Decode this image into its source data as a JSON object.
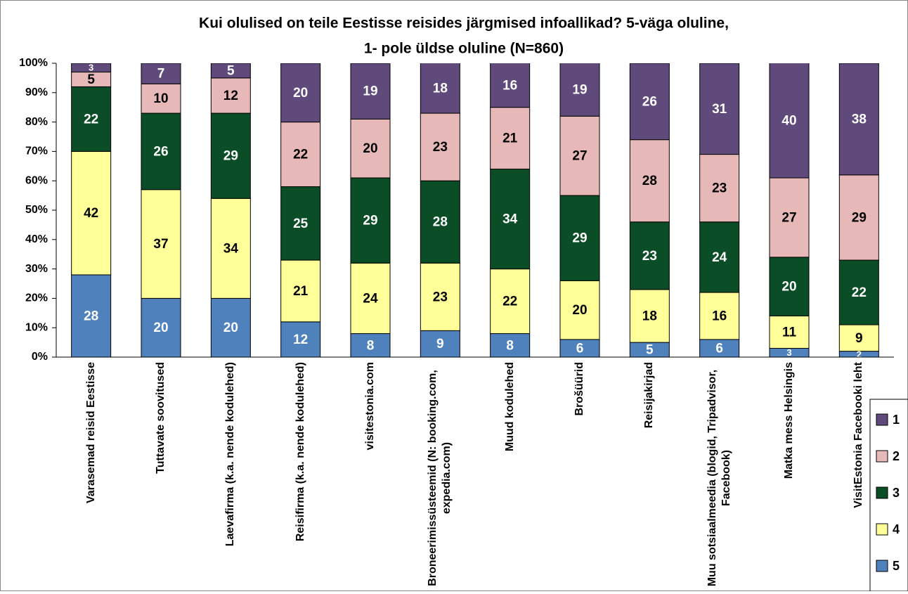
{
  "chart_data": {
    "type": "stacked_bar",
    "title": [
      "Kui olulised on teile Eestisse reisides järgmised infoallikad? 5-väga oluline,",
      "1- pole üldse oluline (N=860)"
    ],
    "categories": [
      "Varasemad reisid Eestisse",
      "Tuttavate soovitused",
      "Laevafirma (k.a. nende kodulehed)",
      "Reisifirma (k.a. nende kodulehed)",
      "visitestonia.com",
      "Broneerimissüsteemid (N: booking.com, expedia.com)",
      "Muud kodulehed",
      "Brošüürid",
      "Reisijakirjad",
      "Muu sotsiaalmeedia (blogid, Tripadvisor, Facebook)",
      "Matka mess Helsingis",
      "VisitEstonia Facebooki leht"
    ],
    "series": [
      {
        "name": "5",
        "color": "#4f81bd",
        "values": [
          28,
          20,
          20,
          12,
          8,
          9,
          8,
          6,
          5,
          6,
          3,
          2
        ]
      },
      {
        "name": "4",
        "color": "#ffff99",
        "values": [
          42,
          37,
          34,
          21,
          24,
          23,
          22,
          20,
          18,
          16,
          11,
          9
        ]
      },
      {
        "name": "3",
        "color": "#0b4d26",
        "values": [
          22,
          26,
          29,
          25,
          29,
          28,
          34,
          29,
          23,
          24,
          20,
          22
        ]
      },
      {
        "name": "2",
        "color": "#e6b8b7",
        "values": [
          5,
          10,
          12,
          22,
          20,
          23,
          21,
          27,
          28,
          23,
          27,
          29
        ]
      },
      {
        "name": "1",
        "color": "#604a7b",
        "values": [
          3,
          7,
          5,
          20,
          19,
          18,
          16,
          19,
          26,
          31,
          40,
          38
        ]
      }
    ],
    "ylim": [
      0,
      100
    ],
    "yticks": [
      {
        "value": 0,
        "label": "0%"
      },
      {
        "value": 10,
        "label": "10%"
      },
      {
        "value": 20,
        "label": "20%"
      },
      {
        "value": 30,
        "label": "30%"
      },
      {
        "value": 40,
        "label": "40%"
      },
      {
        "value": 50,
        "label": "50%"
      },
      {
        "value": 60,
        "label": "60%"
      },
      {
        "value": 70,
        "label": "70%"
      },
      {
        "value": 80,
        "label": "80%"
      },
      {
        "value": 90,
        "label": "90%"
      },
      {
        "value": 100,
        "label": "100%"
      }
    ],
    "legend": "bottom-right"
  }
}
